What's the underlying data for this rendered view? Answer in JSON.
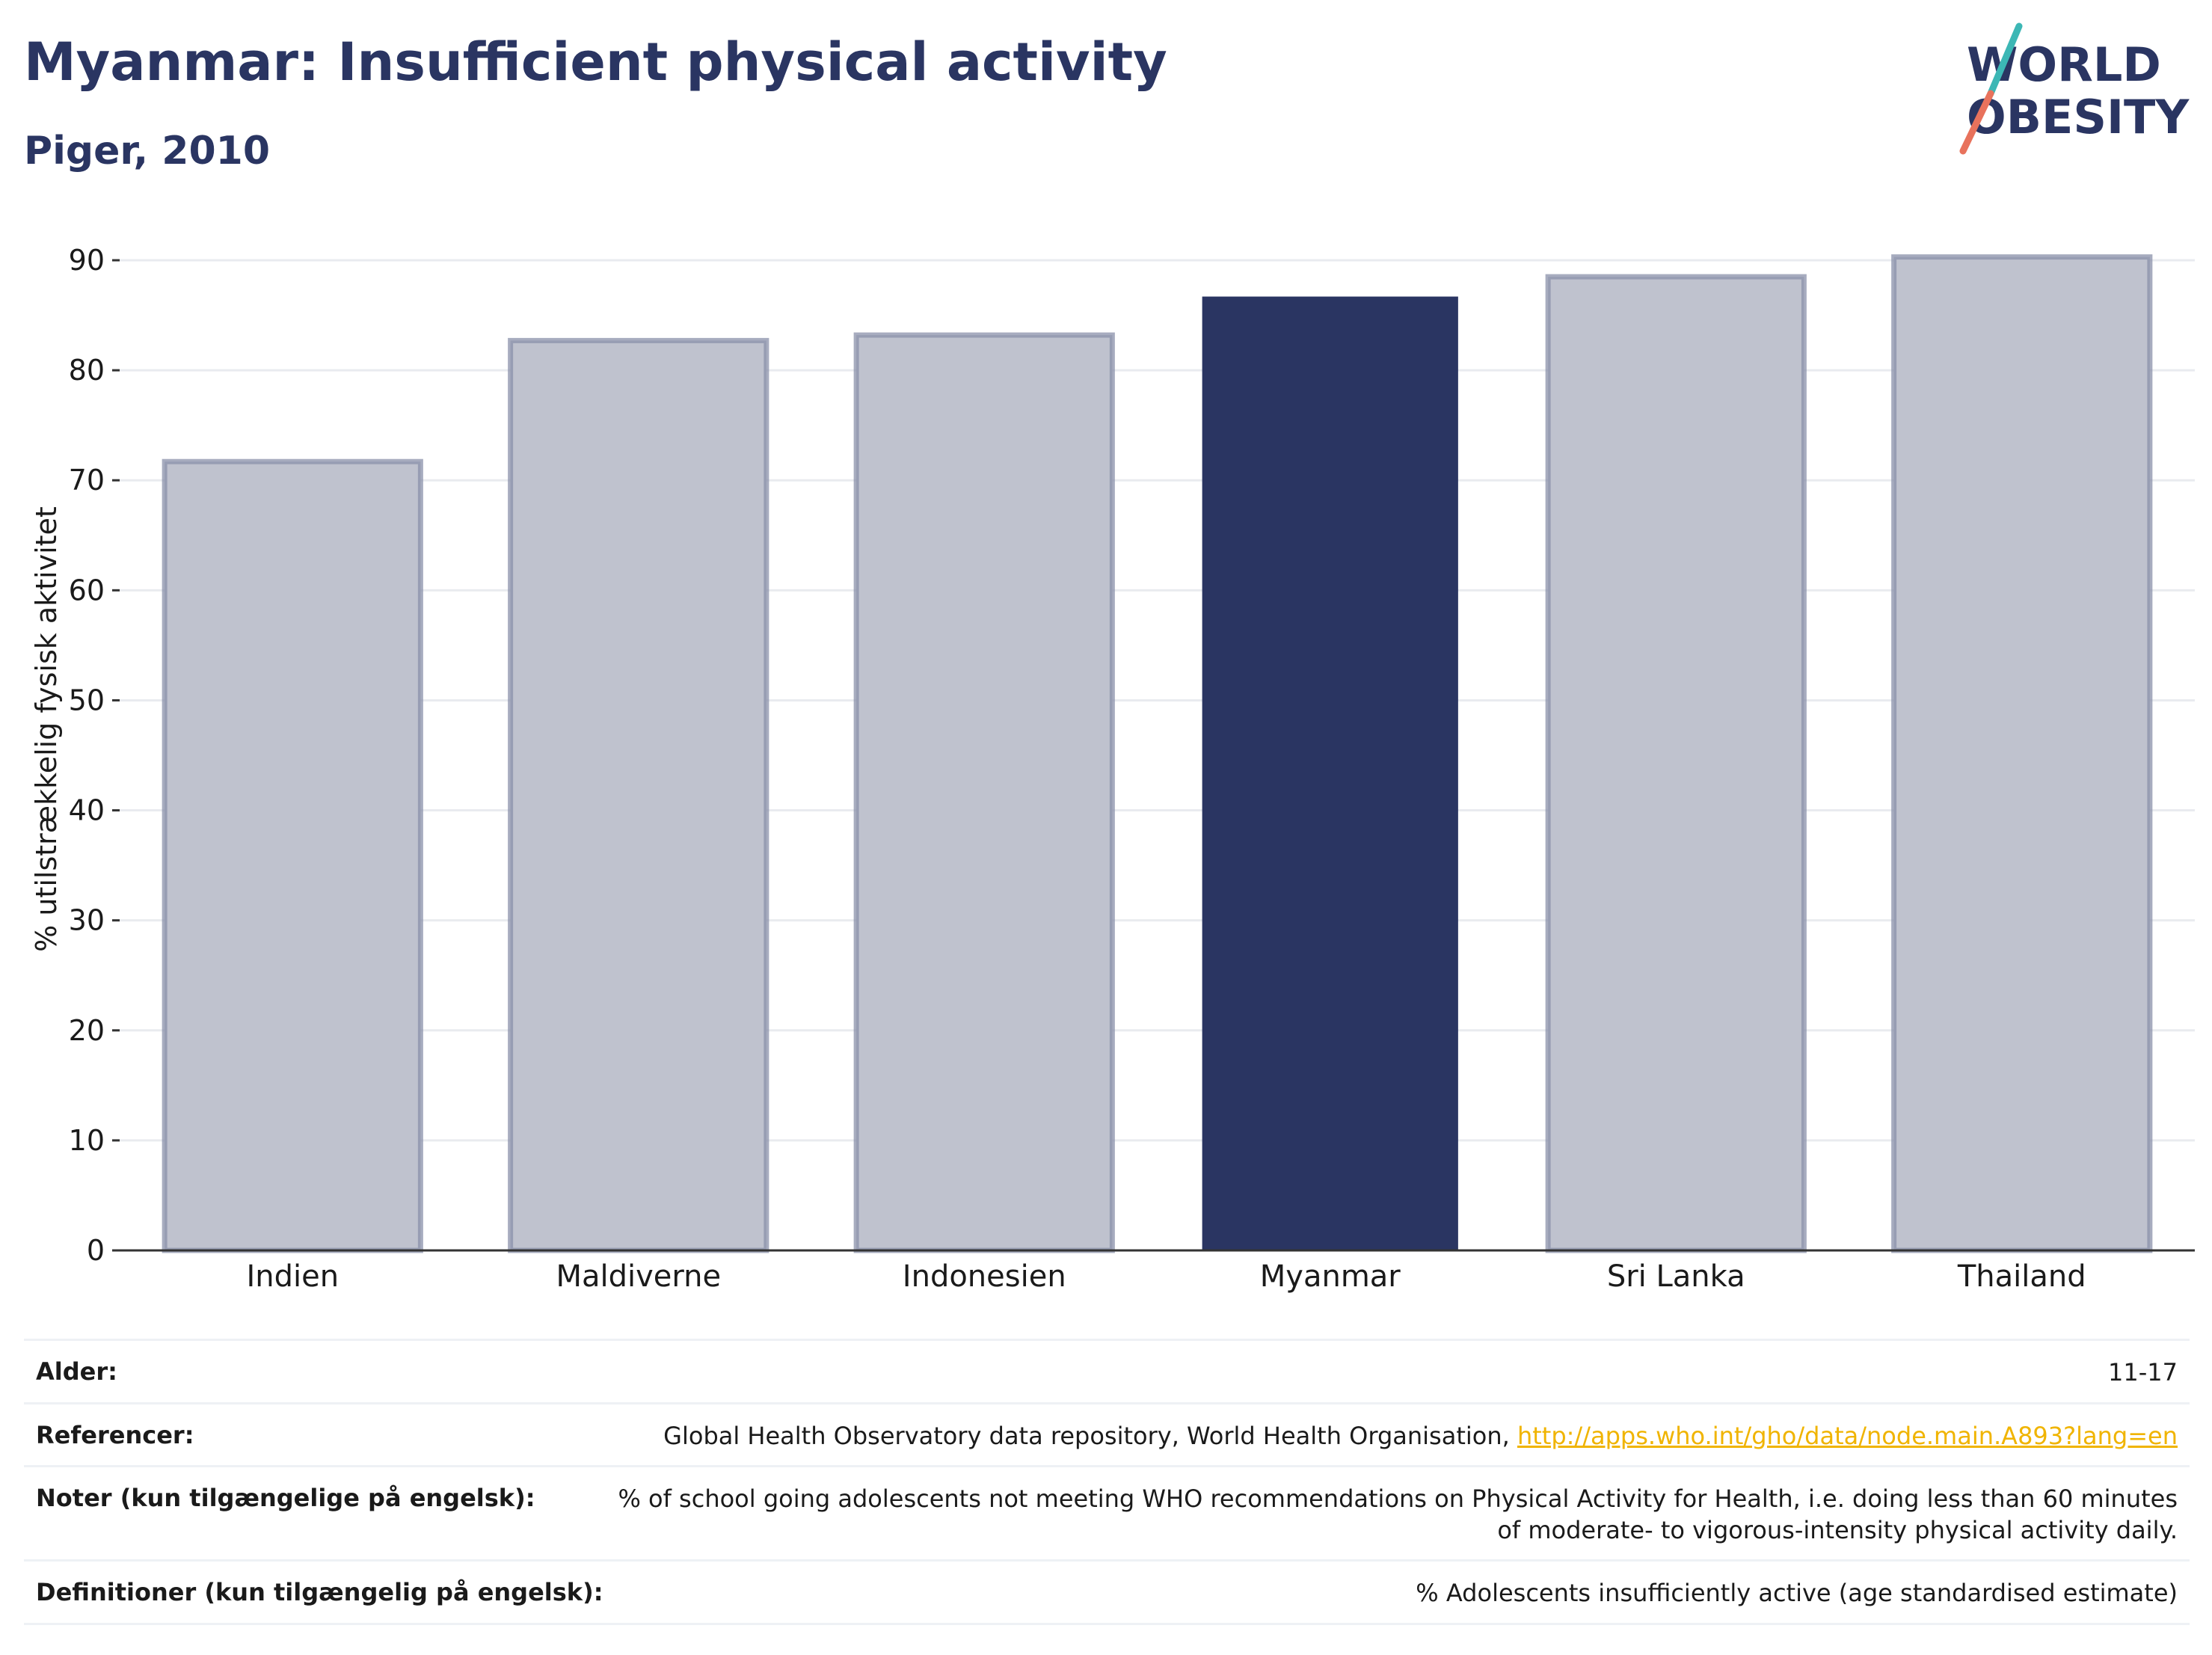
{
  "header": {
    "title": "Myanmar: Insufficient physical activity",
    "subtitle": "Piger, 2010",
    "logo_text_line1": "WORLD",
    "logo_text_line2": "OBESITY"
  },
  "chart_data": {
    "type": "bar",
    "categories": [
      "Indien",
      "Maldiverne",
      "Indonesien",
      "Myanmar",
      "Sri Lanka",
      "Thailand"
    ],
    "values": [
      71.7,
      82.7,
      83.2,
      86.7,
      88.5,
      90.3
    ],
    "highlight": "Myanmar",
    "ylabel": "% utilstrækkelig fysisk aktivitet",
    "ylim": [
      0,
      90
    ],
    "yticks": [
      0,
      10,
      20,
      30,
      40,
      50,
      60,
      70,
      80,
      90
    ],
    "grid": true,
    "colors": {
      "highlight": "#2a3562",
      "muted_fill": "#bfc2ce",
      "muted_stroke": "#8a90a9",
      "grid": "#e9ebef",
      "axis": "#333333"
    }
  },
  "meta": {
    "age_label": "Alder:",
    "age_value": "11-17",
    "ref_label": "Referencer:",
    "ref_text": "Global Health Observatory data repository, World Health Organisation,",
    "ref_link": "http://apps.who.int/gho/data/node.main.A893?lang=en",
    "notes_label": "Noter (kun tilgængelige på engelsk):",
    "notes_value": "% of school going adolescents not meeting WHO recommendations on Physical Activity for Health, i.e. doing less than 60 minutes of moderate- to vigorous-intensity physical activity daily.",
    "def_label": "Definitioner (kun tilgængelig på engelsk):",
    "def_value": "% Adolescents insufficiently active (age standardised estimate)"
  }
}
